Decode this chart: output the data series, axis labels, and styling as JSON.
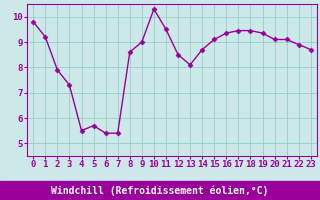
{
  "x": [
    0,
    1,
    2,
    3,
    4,
    5,
    6,
    7,
    8,
    9,
    10,
    11,
    12,
    13,
    14,
    15,
    16,
    17,
    18,
    19,
    20,
    21,
    22,
    23
  ],
  "y": [
    9.8,
    9.2,
    7.9,
    7.3,
    5.5,
    5.7,
    5.4,
    5.4,
    8.6,
    9.0,
    10.3,
    9.5,
    8.5,
    8.1,
    8.7,
    9.1,
    9.35,
    9.45,
    9.45,
    9.35,
    9.1,
    9.1,
    8.9,
    8.7
  ],
  "line_color": "#990099",
  "marker": "D",
  "marker_size": 2.5,
  "line_width": 1.0,
  "bg_color": "#cce8e8",
  "grid_color": "#99cccc",
  "xlabel": "Windchill (Refroidissement éolien,°C)",
  "xlabel_color": "#ffffff",
  "xlabel_bg_color": "#990099",
  "xlabel_fontsize": 7,
  "tick_label_color": "#990099",
  "tick_fontsize": 6.5,
  "ylim": [
    4.5,
    10.5
  ],
  "xlim": [
    -0.5,
    23.5
  ],
  "yticks": [
    5,
    6,
    7,
    8,
    9,
    10
  ],
  "xticks": [
    0,
    1,
    2,
    3,
    4,
    5,
    6,
    7,
    8,
    9,
    10,
    11,
    12,
    13,
    14,
    15,
    16,
    17,
    18,
    19,
    20,
    21,
    22,
    23
  ],
  "spine_color": "#990099",
  "fig_width": 3.2,
  "fig_height": 2.0,
  "dpi": 100
}
